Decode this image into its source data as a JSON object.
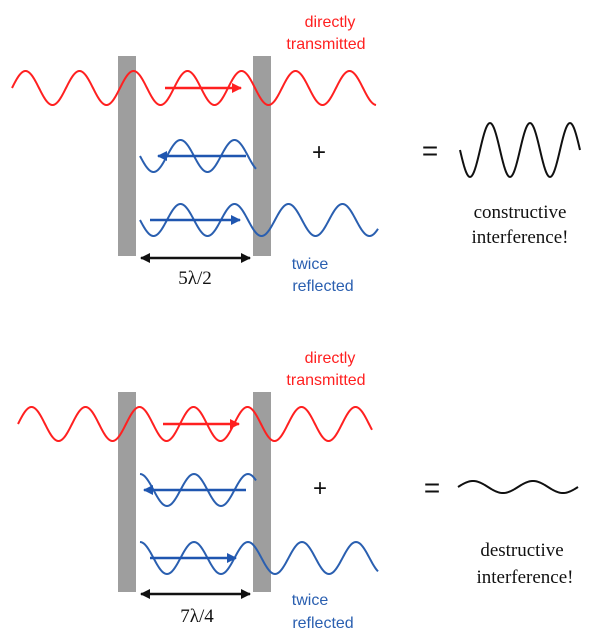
{
  "colors": {
    "transmitted": "#ff2020",
    "reflected": "#2a5fb0",
    "arrow_blue": "#1f56b0",
    "mirror": "#9e9e9e",
    "text_black": "#111111"
  },
  "panels": [
    {
      "label_transmitted_1": "directly",
      "label_transmitted_2": "transmitted",
      "label_reflected_1": "twice",
      "label_reflected_2": "reflected",
      "spacing": "5λ/2",
      "plus": "+",
      "equals": "=",
      "result_1": "constructive",
      "result_2": "interference!"
    },
    {
      "label_transmitted_1": "directly",
      "label_transmitted_2": "transmitted",
      "label_reflected_1": "twice",
      "label_reflected_2": "reflected",
      "spacing": "7λ/4",
      "plus": "+",
      "equals": "=",
      "result_1": "destructive",
      "result_2": "interference!"
    }
  ]
}
